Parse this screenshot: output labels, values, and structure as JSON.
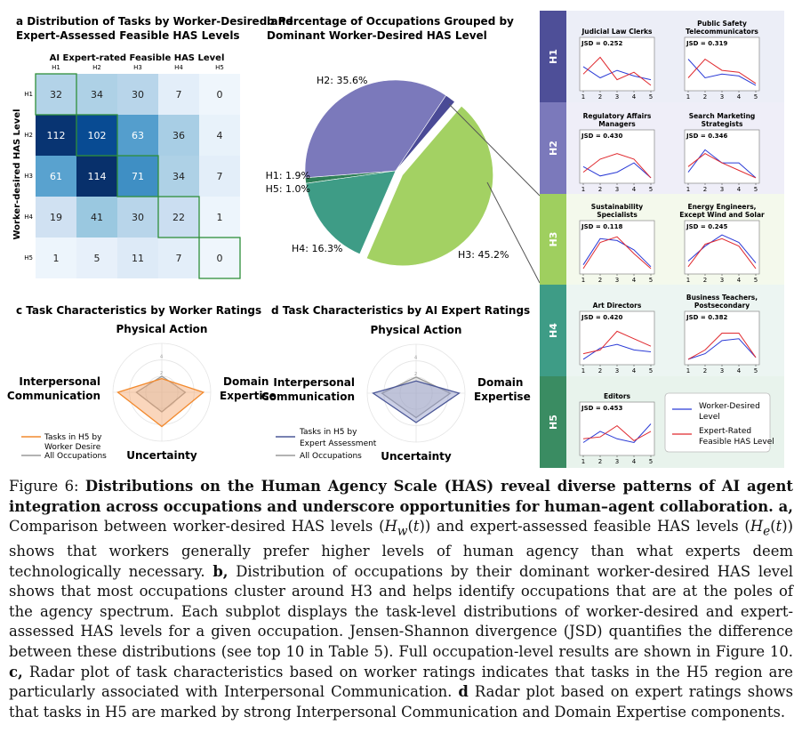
{
  "panel_a": {
    "title_line1": "a Distribution of Tasks by Worker-Desired and",
    "title_line2": "Expert-Assessed Feasible HAS Levels",
    "top_axis_label": "AI Expert-rated Feasible HAS Level",
    "left_axis_label": "Worker-desired HAS Level",
    "col_labels": [
      "H1",
      "H2",
      "H3",
      "H4",
      "H5"
    ],
    "row_labels": [
      "H1",
      "H2",
      "H3",
      "H4",
      "H5"
    ]
  },
  "panel_b": {
    "title_line1": "b Percentage of Occupations Grouped by",
    "title_line2": "Dominant Worker-Desired HAS Level"
  },
  "panel_c": {
    "title": "c Task Characteristics by Worker Ratings",
    "legend": [
      "Tasks in H5 by",
      "Worker Desire",
      "All Occupations"
    ]
  },
  "panel_d": {
    "title": "d Task Characteristics by AI Expert Ratings",
    "legend": [
      "Tasks in H5 by",
      "Expert Assessment",
      "All Occupations"
    ]
  },
  "radar_axes": {
    "top": "Physical Action",
    "left_line1": "Interpersonal",
    "left_line2": "Communication",
    "right_line1": "Domain",
    "right_line2": "Expertise",
    "bottom": "Uncertainty"
  },
  "panel_e": {
    "x_ticks": [
      "1",
      "2",
      "3",
      "4",
      "5"
    ],
    "groups": [
      {
        "label": "H1",
        "color": "#4e4f98"
      },
      {
        "label": "H2",
        "color": "#7b79bb"
      },
      {
        "label": "H3",
        "color": "#9fcf5f"
      },
      {
        "label": "H4",
        "color": "#3e9c86"
      },
      {
        "label": "H5",
        "color": "#3a8c62"
      }
    ],
    "occupations": [
      {
        "name": [
          "Judicial Law Clerks"
        ],
        "jsd": "JSD = 0.252"
      },
      {
        "name": [
          "Public Safety",
          "Telecommunicators"
        ],
        "jsd": "JSD = 0.319"
      },
      {
        "name": [
          "Regulatory Affairs",
          "Managers"
        ],
        "jsd": "JSD = 0.430"
      },
      {
        "name": [
          "Search Marketing",
          "Strategists"
        ],
        "jsd": "JSD = 0.346"
      },
      {
        "name": [
          "Sustainability",
          "Specialists"
        ],
        "jsd": "JSD = 0.118"
      },
      {
        "name": [
          "Energy Engineers,",
          "Except Wind and Solar"
        ],
        "jsd": "JSD = 0.245"
      },
      {
        "name": [
          "Art Directors"
        ],
        "jsd": "JSD = 0.420"
      },
      {
        "name": [
          "Business Teachers,",
          "Postsecondary"
        ],
        "jsd": "JSD = 0.382"
      },
      {
        "name": [
          "Editors"
        ],
        "jsd": "JSD = 0.453"
      }
    ],
    "legend": {
      "worker_line1": "Worker-Desired",
      "worker_line2": "Level",
      "expert_line1": "Expert-Rated",
      "expert_line2": "Feasible HAS Level"
    },
    "colors": {
      "worker": "#2b3bd6",
      "expert": "#e0292e"
    }
  },
  "chart_data": [
    {
      "type": "heatmap",
      "title": "a Distribution of Tasks by Worker-Desired and Expert-Assessed Feasible HAS Levels",
      "xlabel": "AI Expert-rated Feasible HAS Level",
      "ylabel": "Worker-desired HAS Level",
      "x": [
        "H1",
        "H2",
        "H3",
        "H4",
        "H5"
      ],
      "y": [
        "H1",
        "H2",
        "H3",
        "H4",
        "H5"
      ],
      "values": [
        [
          32,
          34,
          30,
          7,
          0
        ],
        [
          112,
          102,
          63,
          36,
          4
        ],
        [
          61,
          114,
          71,
          34,
          7
        ],
        [
          19,
          41,
          30,
          22,
          1
        ],
        [
          1,
          5,
          11,
          7,
          0
        ]
      ]
    },
    {
      "type": "pie",
      "title": "b Percentage of Occupations Grouped by Dominant Worker-Desired HAS Level",
      "labels": [
        "H1",
        "H2",
        "H3",
        "H4",
        "H5"
      ],
      "values": [
        1.9,
        35.6,
        45.2,
        16.3,
        1.0
      ],
      "display": [
        "H1: 1.9%",
        "H2: 35.6%",
        "H3: 45.2%",
        "H4: 16.3%",
        "H5: 1.0%"
      ],
      "colors": [
        "#4a4a96",
        "#7b79bb",
        "#a3d163",
        "#3e9c86",
        "#2e7f57"
      ]
    },
    {
      "type": "line",
      "title": "",
      "x": [
        1,
        2,
        3,
        4,
        5
      ],
      "series": [
        {
          "name": "Worker-Desired Level",
          "values": [
            0.45,
            0.35,
            0.45,
            0.4,
            0.15
          ]
        },
        {
          "name": "Expert-Rated Feasible HAS Level",
          "values": [
            0.3,
            0.7,
            0.2,
            0.3,
            0.05
          ]
        }
      ]
    }
  ]
}
